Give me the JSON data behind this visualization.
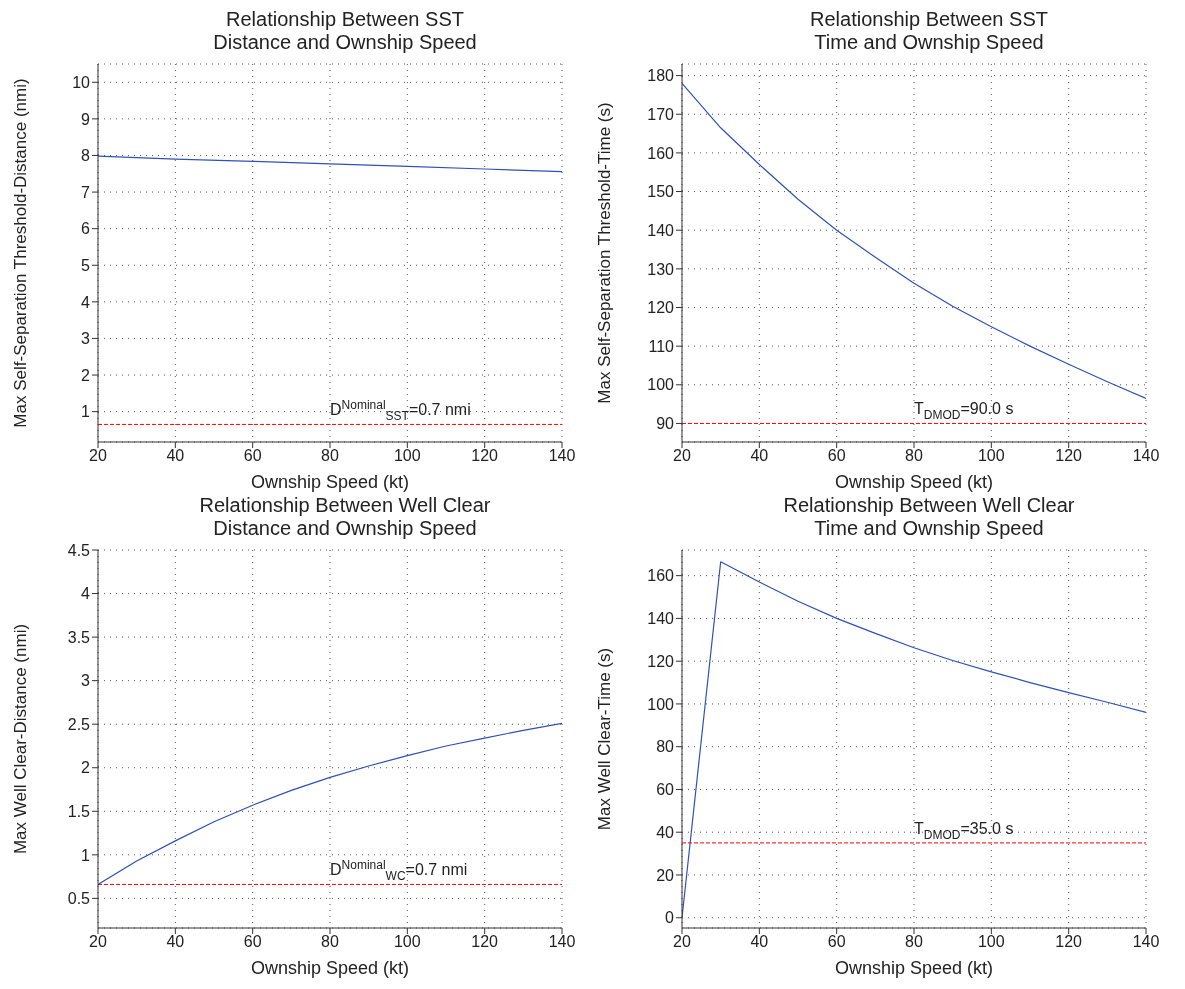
{
  "chart_data": [
    {
      "type": "line",
      "title": "Relationship Between SST\nDistance and Ownship Speed",
      "xlabel": "Ownship Speed (kt)",
      "ylabel": "Max Self-Separation Threshold-Distance (nmi)",
      "x": [
        20,
        40,
        60,
        80,
        100,
        120,
        140
      ],
      "series": [
        {
          "color": "#3050b8",
          "values": [
            7.98,
            7.9,
            7.84,
            7.77,
            7.7,
            7.63,
            7.56
          ]
        }
      ],
      "xlim": [
        20,
        140
      ],
      "xticks": [
        20,
        40,
        60,
        80,
        100,
        120,
        140
      ],
      "ylim": [
        0.17,
        10.5
      ],
      "yticks": [
        1,
        2,
        3,
        4,
        5,
        6,
        7,
        8,
        9,
        10
      ],
      "ref_lines": [
        {
          "axis": "y",
          "value": 0.65,
          "label": "D$^{Nominal}$$_{SST}$=0.7 nmi",
          "color": "#ff0000",
          "line_style": "dashed"
        }
      ],
      "grid": true,
      "marker": "none",
      "line_style": "solid"
    },
    {
      "type": "line",
      "title": "Relationship Between SST\nTime and Ownship Speed",
      "xlabel": "Ownship Speed (kt)",
      "ylabel": "Max Self-Separation Threshold-Time (s)",
      "x": [
        20,
        30,
        40,
        50,
        60,
        70,
        80,
        90,
        100,
        110,
        120,
        130,
        140
      ],
      "series": [
        {
          "color": "#3050b8",
          "values": [
            178,
            166.5,
            157,
            148,
            140,
            133,
            126.3,
            120.3,
            115,
            110,
            105.3,
            100.8,
            96.5
          ]
        }
      ],
      "xlim": [
        20,
        140
      ],
      "xticks": [
        20,
        40,
        60,
        80,
        100,
        120,
        140
      ],
      "ylim": [
        85.2,
        183
      ],
      "yticks": [
        90,
        100,
        110,
        120,
        130,
        140,
        150,
        160,
        170,
        180
      ],
      "ref_lines": [
        {
          "axis": "y",
          "value": 90,
          "label": "T$_{DMOD}$=90.0 s",
          "color": "#ff0000",
          "line_style": "dashed"
        }
      ],
      "grid": true,
      "marker": "none",
      "line_style": "solid"
    },
    {
      "type": "line",
      "title": "Relationship Between Well Clear\nDistance and Ownship Speed",
      "xlabel": "Ownship Speed (kt)",
      "ylabel": "Max Well Clear-Distance (nmi)",
      "x": [
        20,
        30,
        40,
        50,
        60,
        70,
        80,
        90,
        100,
        110,
        120,
        130,
        140
      ],
      "series": [
        {
          "color": "#3050b8",
          "values": [
            0.66,
            0.93,
            1.16,
            1.38,
            1.57,
            1.74,
            1.89,
            2.02,
            2.14,
            2.25,
            2.34,
            2.43,
            2.51
          ]
        }
      ],
      "xlim": [
        20,
        140
      ],
      "xticks": [
        20,
        40,
        60,
        80,
        100,
        120,
        140
      ],
      "ylim": [
        0.16,
        4.5
      ],
      "yticks": [
        0.5,
        1,
        1.5,
        2,
        2.5,
        3,
        3.5,
        4,
        4.5
      ],
      "ref_lines": [
        {
          "axis": "y",
          "value": 0.66,
          "label": "D$^{Nominal}$$_{WC}$=0.7 nmi",
          "color": "#ff0000",
          "line_style": "dashed"
        }
      ],
      "grid": true,
      "marker": "none",
      "line_style": "solid"
    },
    {
      "type": "line",
      "title": "Relationship Between Well Clear\nTime and Ownship Speed",
      "xlabel": "Ownship Speed (kt)",
      "ylabel": "Max Well Clear-Time (s)",
      "x": [
        20,
        30,
        40,
        50,
        60,
        70,
        80,
        90,
        100,
        110,
        120,
        130,
        140
      ],
      "series": [
        {
          "color": "#3050b8",
          "values": [
            0,
            166.5,
            157,
            148,
            140,
            133,
            126.3,
            120.3,
            115,
            110,
            105.3,
            100.8,
            96
          ]
        }
      ],
      "xlim": [
        20,
        140
      ],
      "xticks": [
        20,
        40,
        60,
        80,
        100,
        120,
        140
      ],
      "ylim": [
        -4.8,
        172
      ],
      "yticks": [
        0,
        20,
        40,
        60,
        80,
        100,
        120,
        140,
        160
      ],
      "ref_lines": [
        {
          "axis": "y",
          "value": 35,
          "label": "T$_{DMOD}$=35.0 s",
          "color": "#ff0000",
          "line_style": "dashed"
        }
      ],
      "grid": true,
      "marker": "none",
      "line_style": "solid"
    }
  ]
}
